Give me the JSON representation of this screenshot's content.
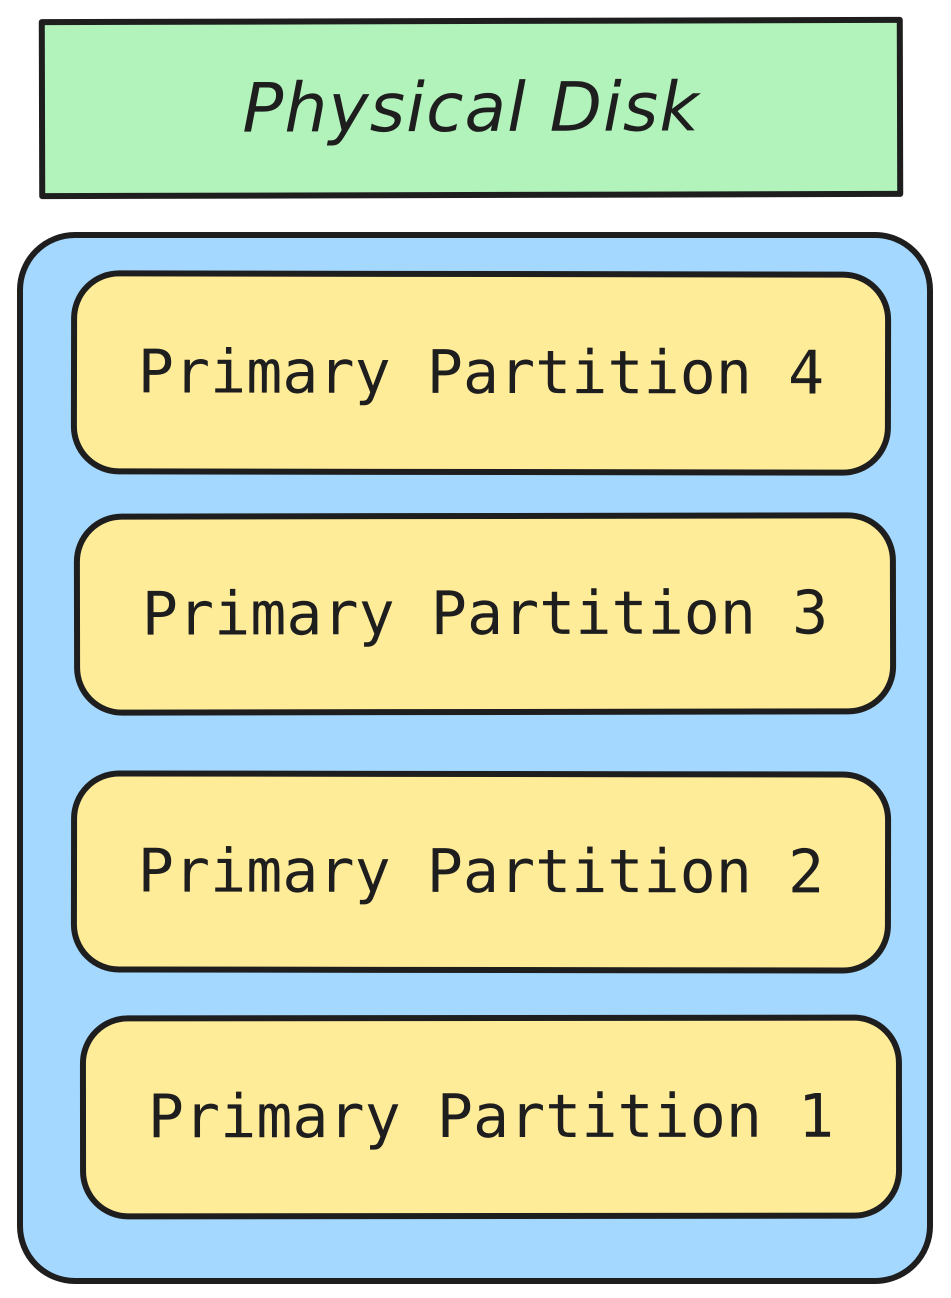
{
  "header": {
    "title": "Physical Disk"
  },
  "partitions": [
    {
      "label": "Primary Partition 4"
    },
    {
      "label": "Primary Partition 3"
    },
    {
      "label": "Primary Partition 2"
    },
    {
      "label": "Primary Partition 1"
    }
  ],
  "colors": {
    "header_fill": "#b2f2bb",
    "disk_fill": "#a5d8ff",
    "partition_fill": "#ffec99",
    "stroke": "#1e1e1e"
  }
}
